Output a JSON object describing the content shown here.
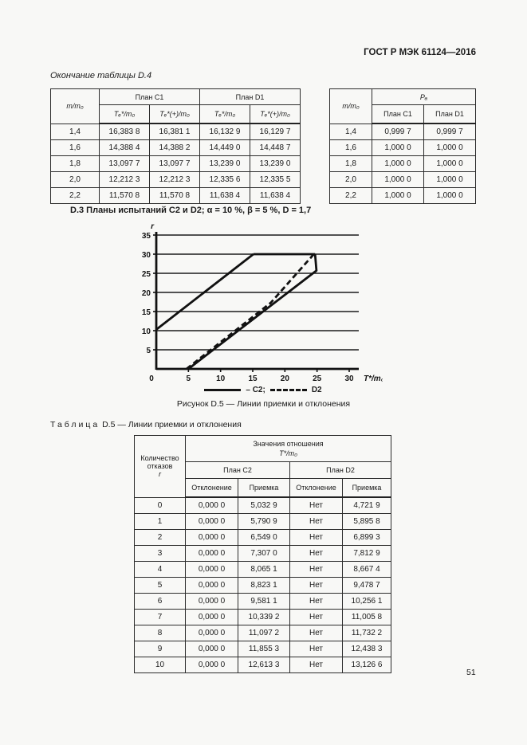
{
  "page": {
    "header": "ГОСТ Р МЭК 61124—2016",
    "page_number": "51"
  },
  "table_d4": {
    "caption": "Окончание таблицы D.4",
    "left": {
      "col_m": "m/m₀",
      "group1": "План С1",
      "group2": "План D1",
      "sub1": "Tₑ*/m₀",
      "sub2": "Tₑ*(+)/m₀",
      "rows": [
        [
          "1,4",
          "16,383 8",
          "16,381 1",
          "16,132 9",
          "16,129 7"
        ],
        [
          "1,6",
          "14,388 4",
          "14,388 2",
          "14,449 0",
          "14,448 7"
        ],
        [
          "1,8",
          "13,097 7",
          "13,097 7",
          "13,239 0",
          "13,239 0"
        ],
        [
          "2,0",
          "12,212 3",
          "12,212 3",
          "12,335 6",
          "12,335 5"
        ],
        [
          "2,2",
          "11,570 8",
          "11,570 8",
          "11,638 4",
          "11,638 4"
        ]
      ]
    },
    "right": {
      "col_m": "m/m₀",
      "group": "Pₐ",
      "sub1": "План С1",
      "sub2": "План D1",
      "rows": [
        [
          "1,4",
          "0,999 7",
          "0,999 7"
        ],
        [
          "1,6",
          "1,000 0",
          "1,000 0"
        ],
        [
          "1,8",
          "1,000 0",
          "1,000 0"
        ],
        [
          "2,0",
          "1,000 0",
          "1,000 0"
        ],
        [
          "2,2",
          "1,000 0",
          "1,000 0"
        ]
      ]
    }
  },
  "section_d3": {
    "heading": "D.3 Планы испытаний С2 и D2; α = 10 %, β = 5 %, D = 1,7"
  },
  "chart_data": {
    "type": "line",
    "title": "",
    "xlabel": "T*/m₀",
    "ylabel": "r",
    "xlim": [
      0,
      30
    ],
    "ylim": [
      0,
      35
    ],
    "xticks": [
      0,
      5,
      10,
      15,
      20,
      25,
      30
    ],
    "yticks": [
      0,
      5,
      10,
      15,
      20,
      25,
      30,
      35
    ],
    "grid": "horizontal",
    "legend_position": "bottom",
    "series": [
      {
        "name": "C2-rejection-line",
        "style": "solid",
        "points": [
          [
            0,
            10.3
          ],
          [
            15.1,
            30
          ]
        ]
      },
      {
        "name": "C2-truncation-line",
        "style": "solid",
        "points": [
          [
            15.1,
            30
          ],
          [
            24.7,
            30
          ]
        ]
      },
      {
        "name": "C2-acceptance-line",
        "style": "solid",
        "points": [
          [
            5.0,
            0
          ],
          [
            24.9,
            25.7
          ],
          [
            24.7,
            30
          ]
        ]
      },
      {
        "name": "D2-acceptance-line",
        "style": "dashed",
        "points": [
          [
            4.7,
            0
          ],
          [
            17.8,
            17.3
          ],
          [
            24.5,
            30
          ]
        ]
      }
    ],
    "legend": [
      {
        "style": "solid",
        "label": "– С2;"
      },
      {
        "style": "dashed",
        "label": "D2"
      }
    ],
    "caption": "Рисунок D.5 — Линии приемки и отклонения"
  },
  "table_d5": {
    "caption_word": "Таблица",
    "caption_rest": "D.5 — Линии приемки и отклонения",
    "col_r_line1": "Количество",
    "col_r_line2": "отказов",
    "col_r_line3": "r",
    "group_top_line1": "Значения отношения",
    "group_top_line2": "T*/m₀",
    "group1": "План С2",
    "group2": "План D2",
    "sub_reject": "Отклонение",
    "sub_accept": "Приемка",
    "rows": [
      [
        "0",
        "0,000 0",
        "5,032 9",
        "Нет",
        "4,721 9"
      ],
      [
        "1",
        "0,000 0",
        "5,790 9",
        "Нет",
        "5,895 8"
      ],
      [
        "2",
        "0,000 0",
        "6,549 0",
        "Нет",
        "6,899 3"
      ],
      [
        "3",
        "0,000 0",
        "7,307 0",
        "Нет",
        "7,812 9"
      ],
      [
        "4",
        "0,000 0",
        "8,065 1",
        "Нет",
        "8,667 4"
      ],
      [
        "5",
        "0,000 0",
        "8,823 1",
        "Нет",
        "9,478 7"
      ],
      [
        "6",
        "0,000 0",
        "9,581 1",
        "Нет",
        "10,256 1"
      ],
      [
        "7",
        "0,000 0",
        "10,339 2",
        "Нет",
        "11,005 8"
      ],
      [
        "8",
        "0,000 0",
        "11,097 2",
        "Нет",
        "11,732 2"
      ],
      [
        "9",
        "0,000 0",
        "11,855 3",
        "Нет",
        "12,438 3"
      ],
      [
        "10",
        "0,000 0",
        "12,613 3",
        "Нет",
        "13,126 6"
      ]
    ]
  }
}
